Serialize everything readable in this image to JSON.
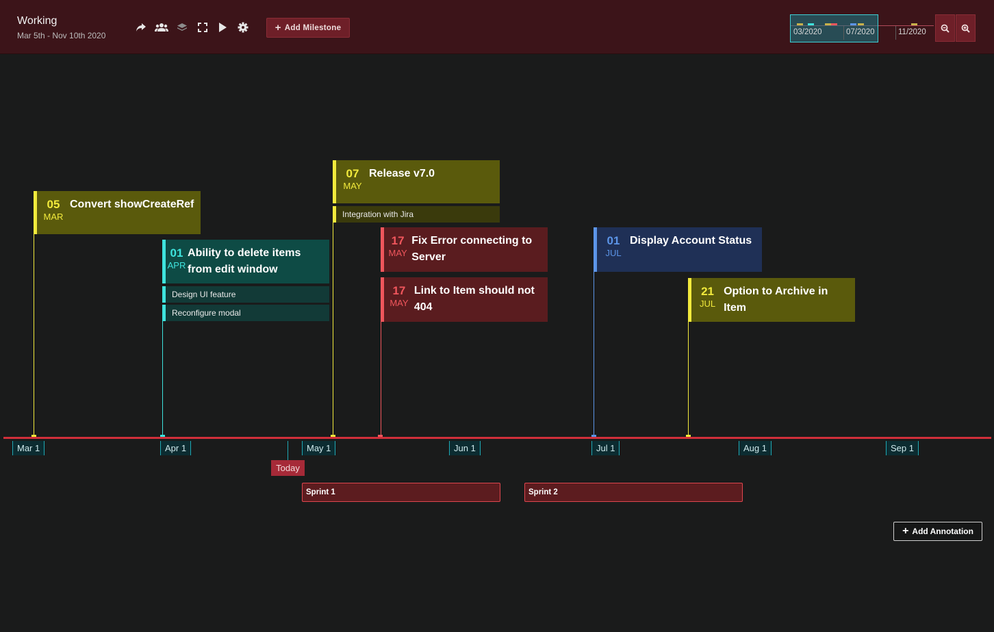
{
  "header": {
    "title": "Working",
    "subtitle": "Mar 5th - Nov 10th 2020",
    "toolbar": [
      {
        "icon": "share-icon"
      },
      {
        "icon": "users-icon"
      },
      {
        "icon": "layers-icon"
      },
      {
        "icon": "fullscreen-icon"
      },
      {
        "icon": "play-icon"
      },
      {
        "icon": "gear-icon"
      }
    ],
    "add_milestone_label": "Add Milestone"
  },
  "minimap": {
    "labels": [
      "03/2020",
      "07/2020",
      "11/2020"
    ]
  },
  "zoom": {
    "out_icon": "zoom-out-icon",
    "in_icon": "zoom-in-icon"
  },
  "axis": {
    "months": [
      "Mar 1",
      "Apr 1",
      "May 1",
      "Jun 1",
      "Jul 1",
      "Aug 1",
      "Sep 1"
    ],
    "today_label": "Today"
  },
  "sprints": [
    {
      "label": "Sprint 1"
    },
    {
      "label": "Sprint 2"
    }
  ],
  "add_annotation_label": "Add Annotation",
  "colors": {
    "yellow": "#f2ea3c",
    "cyan": "#3ee3dd",
    "red": "#f0565c",
    "blue": "#5c95e8",
    "axis": "#d12f3a"
  },
  "milestones": [
    {
      "day": "05",
      "month": "MAR",
      "title": "Convert showCreateRef",
      "color": "yellow",
      "items": []
    },
    {
      "day": "01",
      "month": "APR",
      "title": "Ability to delete items from edit window",
      "color": "cyan",
      "items": [
        "Design UI feature",
        "Reconfigure modal"
      ]
    },
    {
      "day": "07",
      "month": "MAY",
      "title": "Release v7.0",
      "color": "yellow",
      "items": [
        "Integration with Jira"
      ]
    },
    {
      "day": "17",
      "month": "MAY",
      "title": "Fix Error connecting to Server",
      "color": "red",
      "items": []
    },
    {
      "day": "17",
      "month": "MAY",
      "title": "Link to Item should not 404",
      "color": "red",
      "items": []
    },
    {
      "day": "01",
      "month": "JUL",
      "title": "Display Account Status",
      "color": "blue",
      "items": []
    },
    {
      "day": "21",
      "month": "JUL",
      "title": "Option to Archive in Item",
      "color": "yellow",
      "items": []
    }
  ]
}
